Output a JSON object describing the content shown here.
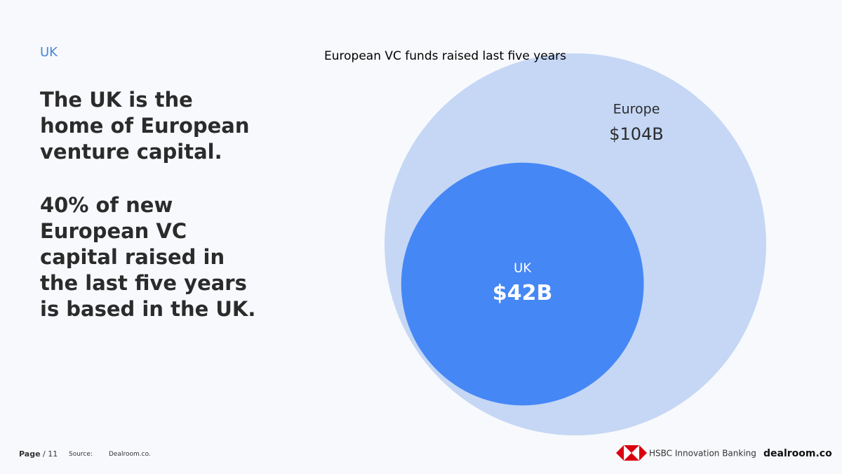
{
  "section": "UK",
  "headline": "The UK is the home of European venture capital.",
  "statement": "40% of new European VC capital raised in the last five years is based in the UK.",
  "chart_data": {
    "type": "bubble",
    "title": "European VC funds raised last five years",
    "categories": [
      "Europe",
      "UK"
    ],
    "values": [
      104,
      42
    ],
    "value_labels": [
      "$104B",
      "$42B"
    ],
    "colors": [
      "#c5d7f5",
      "#4587f5"
    ]
  },
  "footer": {
    "page": "Page",
    "page_number": "/ 11",
    "source_label": "Source:",
    "source": "Dealroom.co.",
    "brand": "HSBC Innovation Banking",
    "partner": "dealroom.co"
  }
}
